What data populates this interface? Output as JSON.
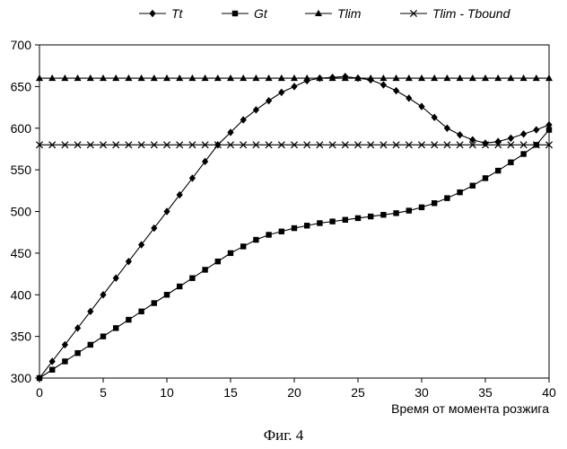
{
  "caption": "Фиг. 4",
  "chart_data": {
    "type": "line",
    "title": "",
    "xlabel": "Время от момента розжига",
    "ylabel": "",
    "xlim": [
      0,
      40
    ],
    "ylim": [
      300,
      700
    ],
    "xticks": [
      0,
      5,
      10,
      15,
      20,
      25,
      30,
      35,
      40
    ],
    "yticks": [
      300,
      350,
      400,
      450,
      500,
      550,
      600,
      650,
      700
    ],
    "grid": false,
    "legend_position": "top",
    "x": [
      0,
      1,
      2,
      3,
      4,
      5,
      6,
      7,
      8,
      9,
      10,
      11,
      12,
      13,
      14,
      15,
      16,
      17,
      18,
      19,
      20,
      21,
      22,
      23,
      24,
      25,
      26,
      27,
      28,
      29,
      30,
      31,
      32,
      33,
      34,
      35,
      36,
      37,
      38,
      39,
      40
    ],
    "series": [
      {
        "name": "Tt",
        "marker": "diamond",
        "values": [
          300,
          320,
          340,
          360,
          380,
          400,
          420,
          440,
          460,
          480,
          500,
          520,
          540,
          560,
          580,
          595,
          610,
          622,
          633,
          643,
          650,
          657,
          660,
          661,
          662,
          660,
          658,
          652,
          645,
          636,
          626,
          613,
          600,
          592,
          586,
          582,
          584,
          588,
          593,
          598,
          604
        ]
      },
      {
        "name": "Gt",
        "marker": "square",
        "values": [
          300,
          310,
          320,
          330,
          340,
          350,
          360,
          370,
          380,
          390,
          400,
          410,
          420,
          430,
          440,
          450,
          458,
          466,
          472,
          476,
          480,
          483,
          486,
          488,
          490,
          492,
          494,
          496,
          498,
          501,
          505,
          510,
          516,
          523,
          531,
          540,
          549,
          559,
          569,
          580,
          598
        ]
      },
      {
        "name": "Tlim",
        "marker": "triangle",
        "values": [
          660,
          660,
          660,
          660,
          660,
          660,
          660,
          660,
          660,
          660,
          660,
          660,
          660,
          660,
          660,
          660,
          660,
          660,
          660,
          660,
          660,
          660,
          660,
          660,
          660,
          660,
          660,
          660,
          660,
          660,
          660,
          660,
          660,
          660,
          660,
          660,
          660,
          660,
          660,
          660,
          660
        ]
      },
      {
        "name": "Tlim - Tbound",
        "marker": "cross",
        "values": [
          580,
          580,
          580,
          580,
          580,
          580,
          580,
          580,
          580,
          580,
          580,
          580,
          580,
          580,
          580,
          580,
          580,
          580,
          580,
          580,
          580,
          580,
          580,
          580,
          580,
          580,
          580,
          580,
          580,
          580,
          580,
          580,
          580,
          580,
          580,
          580,
          580,
          580,
          580,
          580,
          580
        ]
      }
    ]
  }
}
